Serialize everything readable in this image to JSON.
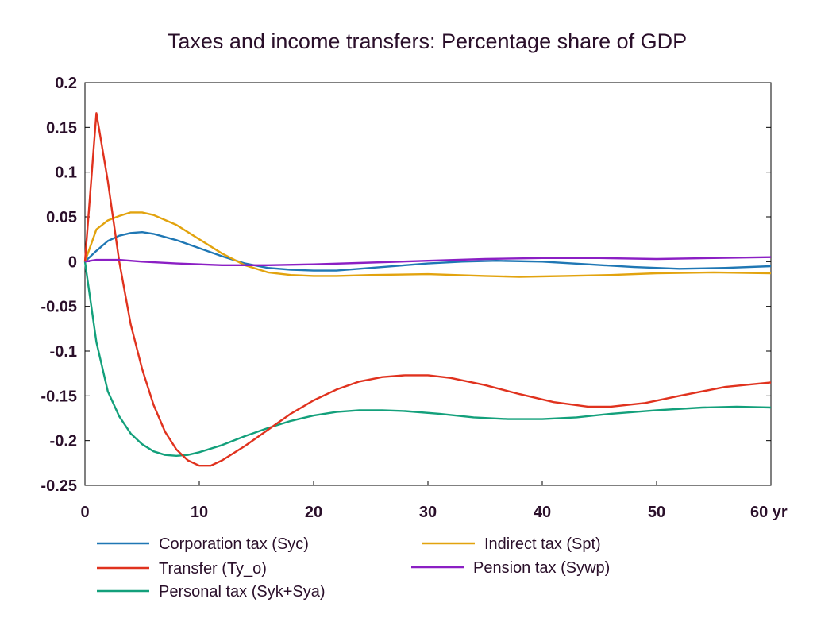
{
  "chart_data": {
    "type": "line",
    "title": "Taxes and income transfers: Percentage share of GDP",
    "xlabel": "",
    "ylabel": "",
    "xlim": [
      0,
      60
    ],
    "ylim": [
      -0.25,
      0.2
    ],
    "x_ticks": [
      "0",
      "10",
      "20",
      "30",
      "40",
      "50",
      "60 yr"
    ],
    "y_ticks": [
      "0.2",
      "0.15",
      "0.1",
      "0.05",
      "0",
      "-0.05",
      "-0.1",
      "-0.15",
      "-0.2",
      "-0.25"
    ],
    "grid": false,
    "legend_position": "bottom",
    "series": [
      {
        "name": "Corporation tax (Syc)",
        "color": "#1f77b4",
        "points": [
          [
            0,
            0
          ],
          [
            1,
            0.012
          ],
          [
            2,
            0.023
          ],
          [
            3,
            0.029
          ],
          [
            4,
            0.032
          ],
          [
            5,
            0.033
          ],
          [
            6,
            0.031
          ],
          [
            8,
            0.024
          ],
          [
            10,
            0.015
          ],
          [
            12,
            0.006
          ],
          [
            14,
            -0.002
          ],
          [
            16,
            -0.007
          ],
          [
            18,
            -0.009
          ],
          [
            20,
            -0.01
          ],
          [
            22,
            -0.01
          ],
          [
            25,
            -0.007
          ],
          [
            28,
            -0.004
          ],
          [
            30,
            -0.002
          ],
          [
            33,
            0
          ],
          [
            36,
            0.001
          ],
          [
            40,
            0
          ],
          [
            44,
            -0.003
          ],
          [
            48,
            -0.006
          ],
          [
            52,
            -0.008
          ],
          [
            56,
            -0.007
          ],
          [
            60,
            -0.005
          ]
        ]
      },
      {
        "name": "Transfer (Ty_o)",
        "color": "#e0321e",
        "points": [
          [
            0,
            0
          ],
          [
            1,
            0.166
          ],
          [
            2,
            0.09
          ],
          [
            3,
            0
          ],
          [
            4,
            -0.07
          ],
          [
            5,
            -0.12
          ],
          [
            6,
            -0.16
          ],
          [
            7,
            -0.19
          ],
          [
            8,
            -0.21
          ],
          [
            9,
            -0.222
          ],
          [
            10,
            -0.228
          ],
          [
            11,
            -0.228
          ],
          [
            12,
            -0.222
          ],
          [
            14,
            -0.206
          ],
          [
            16,
            -0.188
          ],
          [
            18,
            -0.17
          ],
          [
            20,
            -0.155
          ],
          [
            22,
            -0.143
          ],
          [
            24,
            -0.134
          ],
          [
            26,
            -0.129
          ],
          [
            28,
            -0.127
          ],
          [
            30,
            -0.127
          ],
          [
            32,
            -0.13
          ],
          [
            35,
            -0.138
          ],
          [
            38,
            -0.148
          ],
          [
            41,
            -0.157
          ],
          [
            44,
            -0.162
          ],
          [
            46,
            -0.162
          ],
          [
            49,
            -0.158
          ],
          [
            52,
            -0.15
          ],
          [
            56,
            -0.14
          ],
          [
            60,
            -0.135
          ]
        ]
      },
      {
        "name": "Personal tax (Syk+Sya)",
        "color": "#13a07b",
        "points": [
          [
            0,
            0
          ],
          [
            1,
            -0.09
          ],
          [
            2,
            -0.145
          ],
          [
            3,
            -0.173
          ],
          [
            4,
            -0.192
          ],
          [
            5,
            -0.204
          ],
          [
            6,
            -0.212
          ],
          [
            7,
            -0.216
          ],
          [
            8,
            -0.217
          ],
          [
            9,
            -0.216
          ],
          [
            10,
            -0.213
          ],
          [
            12,
            -0.205
          ],
          [
            14,
            -0.195
          ],
          [
            16,
            -0.186
          ],
          [
            18,
            -0.178
          ],
          [
            20,
            -0.172
          ],
          [
            22,
            -0.168
          ],
          [
            24,
            -0.166
          ],
          [
            26,
            -0.166
          ],
          [
            28,
            -0.167
          ],
          [
            31,
            -0.17
          ],
          [
            34,
            -0.174
          ],
          [
            37,
            -0.176
          ],
          [
            40,
            -0.176
          ],
          [
            43,
            -0.174
          ],
          [
            46,
            -0.17
          ],
          [
            50,
            -0.166
          ],
          [
            54,
            -0.163
          ],
          [
            57,
            -0.162
          ],
          [
            60,
            -0.163
          ]
        ]
      },
      {
        "name": "Indirect tax (Spt)",
        "color": "#e2a30e",
        "points": [
          [
            0,
            0
          ],
          [
            1,
            0.036
          ],
          [
            2,
            0.046
          ],
          [
            3,
            0.051
          ],
          [
            4,
            0.055
          ],
          [
            5,
            0.055
          ],
          [
            6,
            0.052
          ],
          [
            8,
            0.041
          ],
          [
            10,
            0.025
          ],
          [
            12,
            0.009
          ],
          [
            14,
            -0.004
          ],
          [
            16,
            -0.012
          ],
          [
            18,
            -0.015
          ],
          [
            20,
            -0.016
          ],
          [
            22,
            -0.016
          ],
          [
            25,
            -0.015
          ],
          [
            30,
            -0.014
          ],
          [
            35,
            -0.016
          ],
          [
            38,
            -0.017
          ],
          [
            42,
            -0.016
          ],
          [
            46,
            -0.015
          ],
          [
            50,
            -0.013
          ],
          [
            55,
            -0.012
          ],
          [
            60,
            -0.013
          ]
        ]
      },
      {
        "name": "Pension tax (Sywp)",
        "color": "#8b1fc4",
        "points": [
          [
            0,
            0
          ],
          [
            1,
            0.002
          ],
          [
            3,
            0.002
          ],
          [
            5,
            0
          ],
          [
            8,
            -0.002
          ],
          [
            12,
            -0.004
          ],
          [
            16,
            -0.004
          ],
          [
            20,
            -0.003
          ],
          [
            25,
            -0.001
          ],
          [
            30,
            0.001
          ],
          [
            35,
            0.003
          ],
          [
            40,
            0.004
          ],
          [
            45,
            0.004
          ],
          [
            50,
            0.003
          ],
          [
            55,
            0.004
          ],
          [
            60,
            0.005
          ]
        ]
      }
    ]
  }
}
